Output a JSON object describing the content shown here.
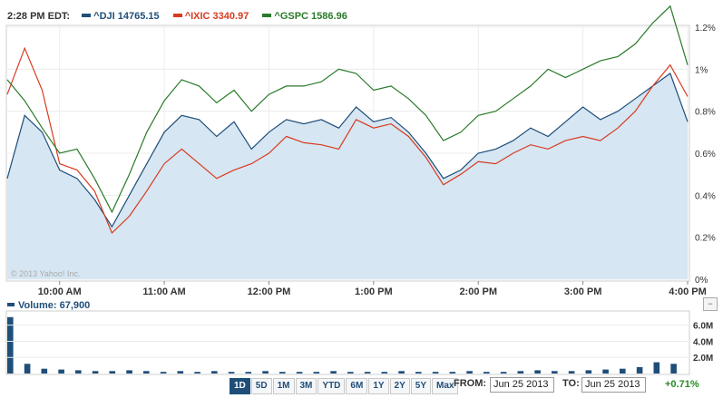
{
  "legend": {
    "time": "2:28 PM EDT:",
    "items": [
      {
        "label": "^DJI 14765.15",
        "color": "#1f4e79"
      },
      {
        "label": "^IXIC 3340.97",
        "color": "#d93a1f"
      },
      {
        "label": "^GSPC 1586.96",
        "color": "#2a7a2a"
      }
    ]
  },
  "copyright": "© 2013 Yahoo! Inc.",
  "chart_data": {
    "type": "line",
    "x_ticks": [
      "10:00 AM",
      "11:00 AM",
      "12:00 PM",
      "1:00 PM",
      "2:00 PM",
      "3:00 PM",
      "4:00 PM"
    ],
    "y_ticks": [
      "1.2%",
      "1%",
      "0.8%",
      "0.6%",
      "0.4%",
      "0.2%",
      "0%"
    ],
    "ylim": [
      0,
      1.2
    ],
    "series": [
      {
        "name": "^DJI",
        "color": "#1f4e79",
        "area_fill": "#d6e6f2",
        "x": [
          "9:30",
          "9:40",
          "9:50",
          "10:00",
          "10:10",
          "10:20",
          "10:30",
          "10:40",
          "10:50",
          "11:00",
          "11:10",
          "11:20",
          "11:30",
          "11:40",
          "11:50",
          "12:00",
          "12:10",
          "12:20",
          "12:30",
          "12:40",
          "12:50",
          "13:00",
          "13:10",
          "13:20",
          "13:30",
          "13:40",
          "13:50",
          "14:00",
          "14:10",
          "14:20",
          "14:30",
          "14:40",
          "14:50",
          "15:00",
          "15:10",
          "15:20",
          "15:30",
          "15:40",
          "15:50",
          "16:00"
        ],
        "values": [
          0.48,
          0.78,
          0.7,
          0.52,
          0.48,
          0.38,
          0.25,
          0.4,
          0.55,
          0.7,
          0.78,
          0.76,
          0.68,
          0.75,
          0.62,
          0.7,
          0.76,
          0.74,
          0.76,
          0.72,
          0.82,
          0.75,
          0.77,
          0.7,
          0.6,
          0.48,
          0.52,
          0.6,
          0.62,
          0.66,
          0.72,
          0.68,
          0.75,
          0.82,
          0.76,
          0.8,
          0.86,
          0.92,
          0.98,
          0.75
        ]
      },
      {
        "name": "^IXIC",
        "color": "#d93a1f",
        "x": [
          "9:30",
          "9:40",
          "9:50",
          "10:00",
          "10:10",
          "10:20",
          "10:30",
          "10:40",
          "10:50",
          "11:00",
          "11:10",
          "11:20",
          "11:30",
          "11:40",
          "11:50",
          "12:00",
          "12:10",
          "12:20",
          "12:30",
          "12:40",
          "12:50",
          "13:00",
          "13:10",
          "13:20",
          "13:30",
          "13:40",
          "13:50",
          "14:00",
          "14:10",
          "14:20",
          "14:30",
          "14:40",
          "14:50",
          "15:00",
          "15:10",
          "15:20",
          "15:30",
          "15:40",
          "15:50",
          "16:00"
        ],
        "values": [
          0.88,
          1.1,
          0.9,
          0.55,
          0.52,
          0.42,
          0.22,
          0.3,
          0.42,
          0.55,
          0.62,
          0.55,
          0.48,
          0.52,
          0.55,
          0.6,
          0.68,
          0.65,
          0.64,
          0.62,
          0.76,
          0.72,
          0.74,
          0.68,
          0.58,
          0.45,
          0.5,
          0.56,
          0.55,
          0.6,
          0.64,
          0.62,
          0.66,
          0.68,
          0.66,
          0.72,
          0.8,
          0.92,
          1.02,
          0.87
        ]
      },
      {
        "name": "^GSPC",
        "color": "#2a7a2a",
        "x": [
          "9:30",
          "9:40",
          "9:50",
          "10:00",
          "10:10",
          "10:20",
          "10:30",
          "10:40",
          "10:50",
          "11:00",
          "11:10",
          "11:20",
          "11:30",
          "11:40",
          "11:50",
          "12:00",
          "12:10",
          "12:20",
          "12:30",
          "12:40",
          "12:50",
          "13:00",
          "13:10",
          "13:20",
          "13:30",
          "13:40",
          "13:50",
          "14:00",
          "14:10",
          "14:20",
          "14:30",
          "14:40",
          "14:50",
          "15:00",
          "15:10",
          "15:20",
          "15:30",
          "15:40",
          "15:50",
          "16:00"
        ],
        "values": [
          0.95,
          0.85,
          0.72,
          0.6,
          0.62,
          0.48,
          0.32,
          0.5,
          0.7,
          0.85,
          0.95,
          0.92,
          0.84,
          0.9,
          0.8,
          0.88,
          0.92,
          0.92,
          0.94,
          1.0,
          0.98,
          0.9,
          0.92,
          0.86,
          0.78,
          0.66,
          0.7,
          0.78,
          0.8,
          0.86,
          0.92,
          1.0,
          0.96,
          1.0,
          1.04,
          1.06,
          1.12,
          1.22,
          1.3,
          1.02
        ]
      }
    ]
  },
  "volume": {
    "label": "Volume: 67,900",
    "y_ticks": [
      "6.0M",
      "4.0M",
      "2.0M"
    ],
    "collapse_icon": "minus-icon"
  },
  "ranges": [
    {
      "label": "1D",
      "active": true
    },
    {
      "label": "5D",
      "active": false
    },
    {
      "label": "1M",
      "active": false
    },
    {
      "label": "3M",
      "active": false
    },
    {
      "label": "YTD",
      "active": false
    },
    {
      "label": "6M",
      "active": false
    },
    {
      "label": "1Y",
      "active": false
    },
    {
      "label": "2Y",
      "active": false
    },
    {
      "label": "5Y",
      "active": false
    },
    {
      "label": "Max",
      "active": false
    }
  ],
  "from_label": "FROM:",
  "from_date": "Jun 25 2013",
  "to_label": "TO:",
  "to_date": "Jun 25 2013",
  "change": "+0.71%"
}
